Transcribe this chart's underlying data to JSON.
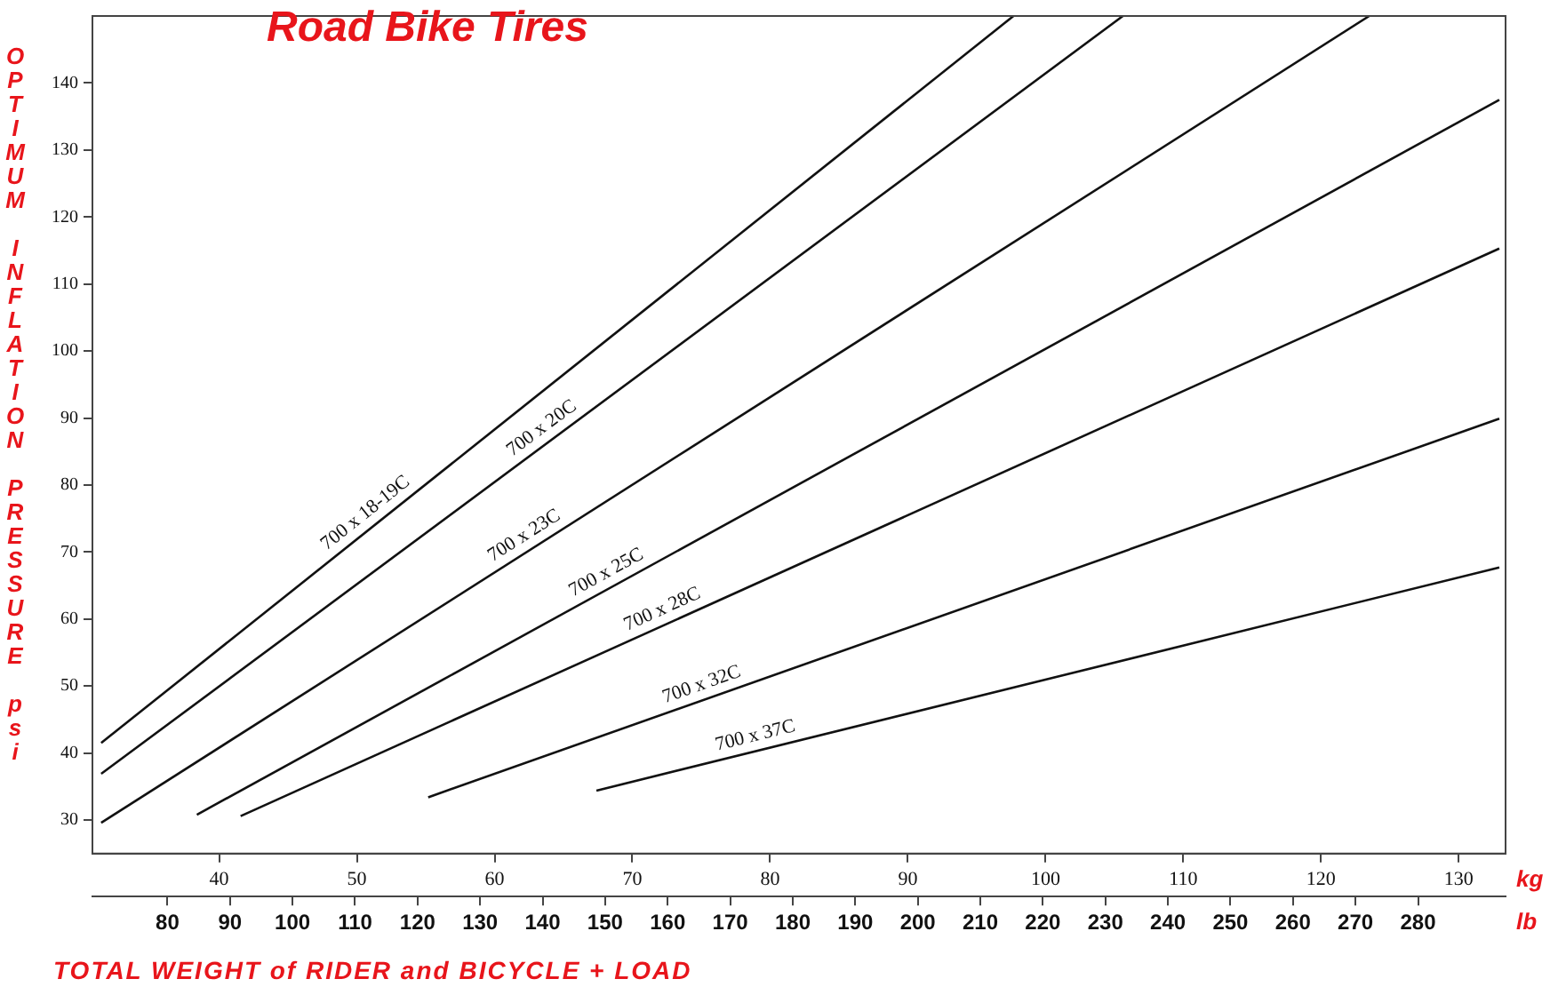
{
  "chart_data": {
    "type": "line",
    "title": "Road Bike Tires",
    "xlabel": "TOTAL WEIGHT of RIDER and BICYCLE + LOAD",
    "ylabel": "OPTIMUM INFLATION PRESSURE psi",
    "annotations": [
      "kg",
      "lb"
    ],
    "xlim": [
      68,
      294
    ],
    "xticks": [
      80,
      90,
      100,
      110,
      120,
      130,
      140,
      150,
      160,
      170,
      180,
      190,
      200,
      210,
      220,
      230,
      240,
      250,
      260,
      270,
      280
    ],
    "x2lim": [
      30.8,
      133.4
    ],
    "x2ticks": [
      40,
      50,
      60,
      70,
      80,
      90,
      100,
      110,
      120,
      130
    ],
    "ylim": [
      25,
      150
    ],
    "yticks": [
      30,
      40,
      50,
      60,
      70,
      80,
      90,
      100,
      110,
      120,
      130,
      140
    ],
    "marker": "none",
    "line_style": "solid",
    "series": [
      {
        "name": "700 x 18-19C",
        "color": "#111111",
        "x": [
          69.4,
          215.3
        ],
        "values": [
          41.5,
          150
        ]
      },
      {
        "name": "700 x 20C",
        "color": "#111111",
        "x": [
          69.4,
          232.8
        ],
        "values": [
          36.9,
          150
        ]
      },
      {
        "name": "700 x 23C",
        "color": "#111111",
        "x": [
          69.4,
          272.2
        ],
        "values": [
          29.6,
          150
        ]
      },
      {
        "name": "700 x 25C",
        "color": "#111111",
        "x": [
          84.7,
          293
        ],
        "values": [
          30.8,
          137.5
        ]
      },
      {
        "name": "700 x 28C",
        "color": "#111111",
        "x": [
          91.7,
          293
        ],
        "values": [
          30.6,
          115.3
        ]
      },
      {
        "name": "700 x 32C",
        "color": "#111111",
        "x": [
          121.7,
          293
        ],
        "values": [
          33.4,
          89.9
        ]
      },
      {
        "name": "700 x 37C",
        "color": "#111111",
        "x": [
          148.6,
          293
        ],
        "values": [
          34.4,
          67.7
        ]
      }
    ]
  }
}
